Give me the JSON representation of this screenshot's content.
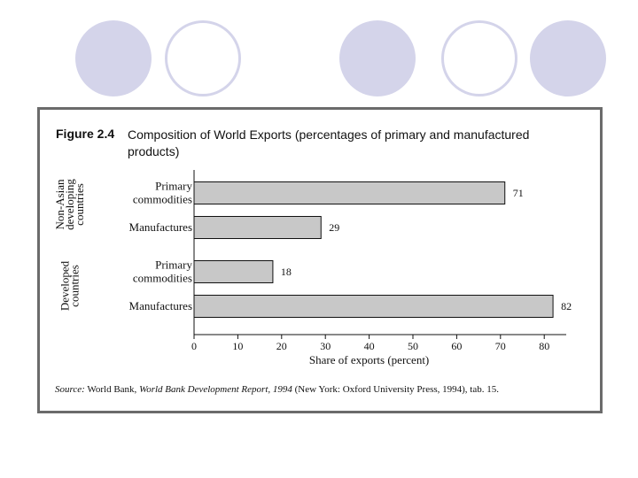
{
  "decor": {
    "circle_fill": "#d4d4ea",
    "frame_color": "#6b6b6b",
    "bar_fill": "#c8c8c8"
  },
  "figure": {
    "label": "Figure 2.4",
    "title": "Composition of World Exports (percentages of primary and manufactured products)"
  },
  "chart_data": {
    "type": "bar",
    "orientation": "horizontal",
    "groups": [
      {
        "label_lines": [
          "Non-Asian",
          "developing",
          "countries"
        ]
      },
      {
        "label_lines": [
          "Developed",
          "countries"
        ]
      }
    ],
    "bars": [
      {
        "group": 0,
        "category_lines": [
          "Primary",
          "commodities"
        ],
        "value": 71
      },
      {
        "group": 0,
        "category_lines": [
          "Manufactures"
        ],
        "value": 29
      },
      {
        "group": 1,
        "category_lines": [
          "Primary",
          "commodities"
        ],
        "value": 18
      },
      {
        "group": 1,
        "category_lines": [
          "Manufactures"
        ],
        "value": 82
      }
    ],
    "xticks": [
      0,
      10,
      20,
      30,
      40,
      50,
      60,
      70,
      80
    ],
    "xlim": [
      0,
      84
    ],
    "xlabel": "Share of exports (percent)",
    "title": "Composition of World Exports (percentages of primary and manufactured products)"
  },
  "source": {
    "label": "Source:",
    "part1": " World Bank, ",
    "report_title": "World Bank Development Report, 1994",
    "part2": " (New York: Oxford University Press, 1994), tab. 15."
  }
}
